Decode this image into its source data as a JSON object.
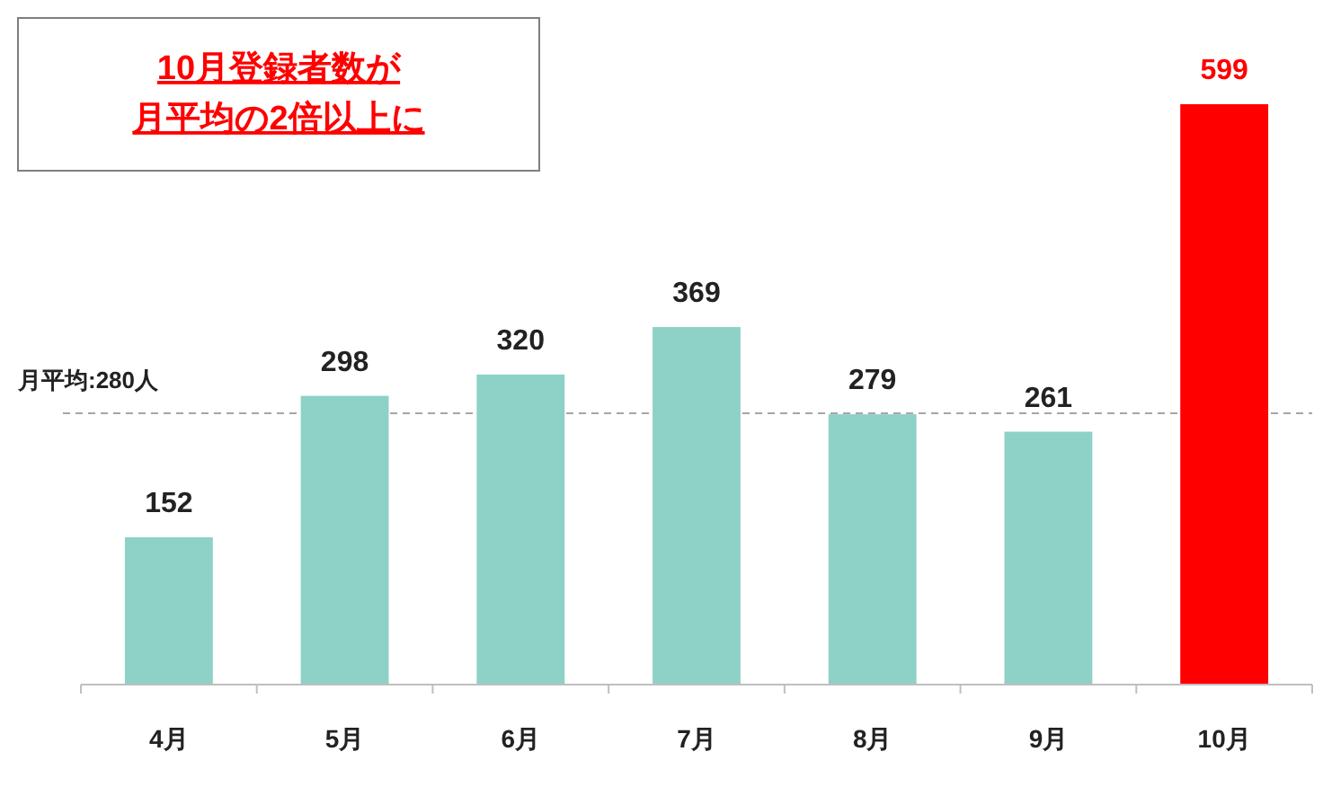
{
  "chart_data": {
    "type": "bar",
    "title": "10月登録者数が",
    "subtitle": "月平均の2倍以上に",
    "categories": [
      "4月",
      "5月",
      "6月",
      "7月",
      "8月",
      "9月",
      "10月"
    ],
    "values": [
      152,
      298,
      320,
      369,
      279,
      261,
      599
    ],
    "colors": [
      "#8ed1c6",
      "#8ed1c6",
      "#8ed1c6",
      "#8ed1c6",
      "#8ed1c6",
      "#8ed1c6",
      "#ff0000"
    ],
    "data_labels": true,
    "ref_lines": [
      {
        "axis": "y",
        "value": 280,
        "label": "月平均:280人",
        "color": "#a6a6a6",
        "line_style": "dashed"
      }
    ]
  }
}
